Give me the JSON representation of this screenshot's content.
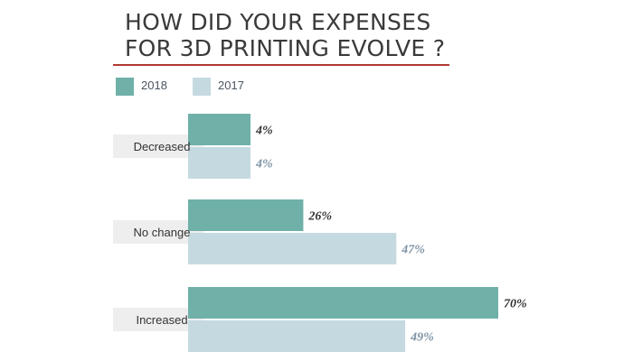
{
  "title": [
    "HOW DID YOUR EXPENSES",
    "FOR 3D PRINTING EVOLVE ?"
  ],
  "colors": {
    "accent_rule": "#b03a32",
    "label_box": "#eeeeee"
  },
  "chart_data": {
    "type": "bar",
    "orientation": "horizontal",
    "categories": [
      "Decreased",
      "No change",
      "Increased"
    ],
    "series": [
      {
        "name": "2018",
        "values": [
          4,
          26,
          70
        ],
        "labels": [
          "4%",
          "26%",
          "70%"
        ],
        "color": "#6fb0a9",
        "label_color": "#333333"
      },
      {
        "name": "2017",
        "values": [
          4,
          47,
          49
        ],
        "labels": [
          "4%",
          "47%",
          "49%"
        ],
        "color": "#c5dae0",
        "label_color": "#7f93a4"
      }
    ],
    "unit": "%",
    "legend_position": "top-left",
    "grid": false
  }
}
